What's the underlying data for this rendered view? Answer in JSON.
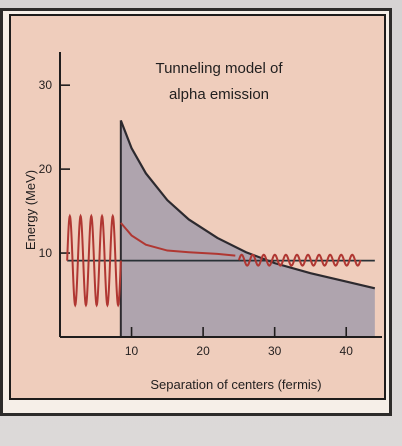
{
  "chart_data": {
    "type": "line",
    "title_lines": [
      "Tunneling model of",
      "alpha emission"
    ],
    "xlabel": "Separation of centers (fermis)",
    "ylabel": "Energy (MeV)",
    "xlim": [
      0,
      45
    ],
    "ylim": [
      0,
      33
    ],
    "x_ticks": [
      10,
      20,
      30,
      40
    ],
    "y_ticks": [
      10,
      20,
      30
    ],
    "grid": false,
    "barrier_edge_x": 8.5,
    "colors": {
      "axis": "#1f1d1d",
      "barrier_fill": "#a9a1ad",
      "barrier_line": "#2d2a2f",
      "wave": "#b03732",
      "energy_line": "#293136",
      "title": "#211f1f"
    },
    "series": [
      {
        "x": [
          8.5,
          10,
          12,
          15,
          18,
          22,
          26,
          30,
          35,
          40,
          44
        ],
        "values": [
          25.8,
          22.5,
          19.5,
          16.3,
          14,
          11.8,
          10.1,
          8.8,
          7.6,
          6.6,
          5.8
        ]
      },
      {
        "x": [
          1,
          44
        ],
        "values": [
          9.1,
          9.1
        ]
      },
      {
        "x": [
          8.5,
          10,
          12,
          15,
          18,
          22,
          24.5
        ],
        "values": [
          13.6,
          12.1,
          11,
          10.3,
          10.1,
          9.9,
          9.7
        ]
      }
    ],
    "wave_left": {
      "x_start": 1,
      "x_end": 8.5,
      "center": 9.1,
      "amplitude": 5.3,
      "cycles": 5
    },
    "wave_right": {
      "x_start": 25,
      "x_end": 42,
      "center": 9.15,
      "amplitude": 0.65,
      "cycles": 11
    }
  }
}
